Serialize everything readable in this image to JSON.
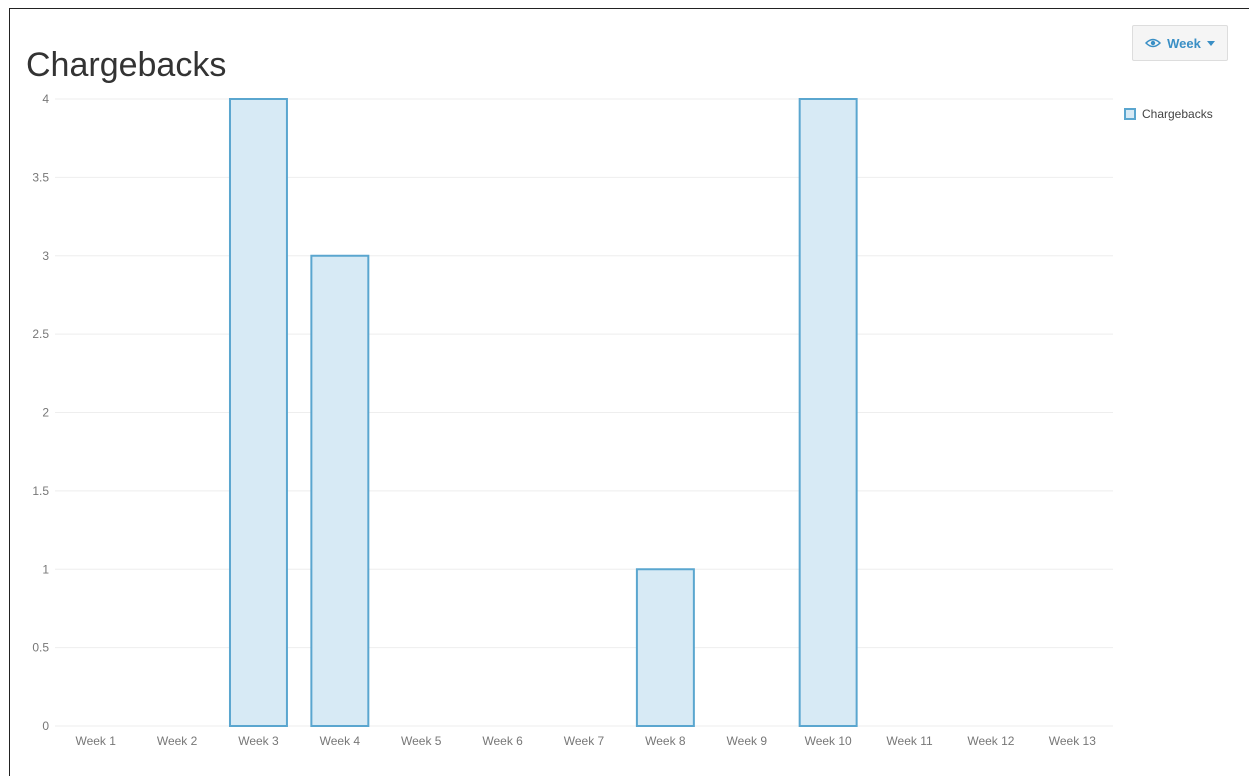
{
  "title": "Chargebacks",
  "period_button": {
    "label": "Week",
    "icon": "eye-icon"
  },
  "colors": {
    "bar_fill": "#d7eaf5",
    "bar_stroke": "#5aa6cf",
    "grid": "#eeeeee",
    "accent": "#3a8fc5"
  },
  "chart_data": {
    "type": "bar",
    "title": "Chargebacks",
    "xlabel": "",
    "ylabel": "",
    "categories": [
      "Week 1",
      "Week 2",
      "Week 3",
      "Week 4",
      "Week 5",
      "Week 6",
      "Week 7",
      "Week 8",
      "Week 9",
      "Week 10",
      "Week 11",
      "Week 12",
      "Week 13"
    ],
    "series": [
      {
        "name": "Chargebacks",
        "values": [
          0,
          0,
          4,
          3,
          0,
          0,
          0,
          1,
          0,
          4,
          0,
          0,
          0
        ]
      }
    ],
    "ylim": [
      0,
      4
    ],
    "yticks": [
      "0",
      "0.5",
      "1",
      "1.5",
      "2",
      "2.5",
      "3",
      "3.5",
      "4"
    ],
    "grid": true,
    "legend": "right"
  }
}
